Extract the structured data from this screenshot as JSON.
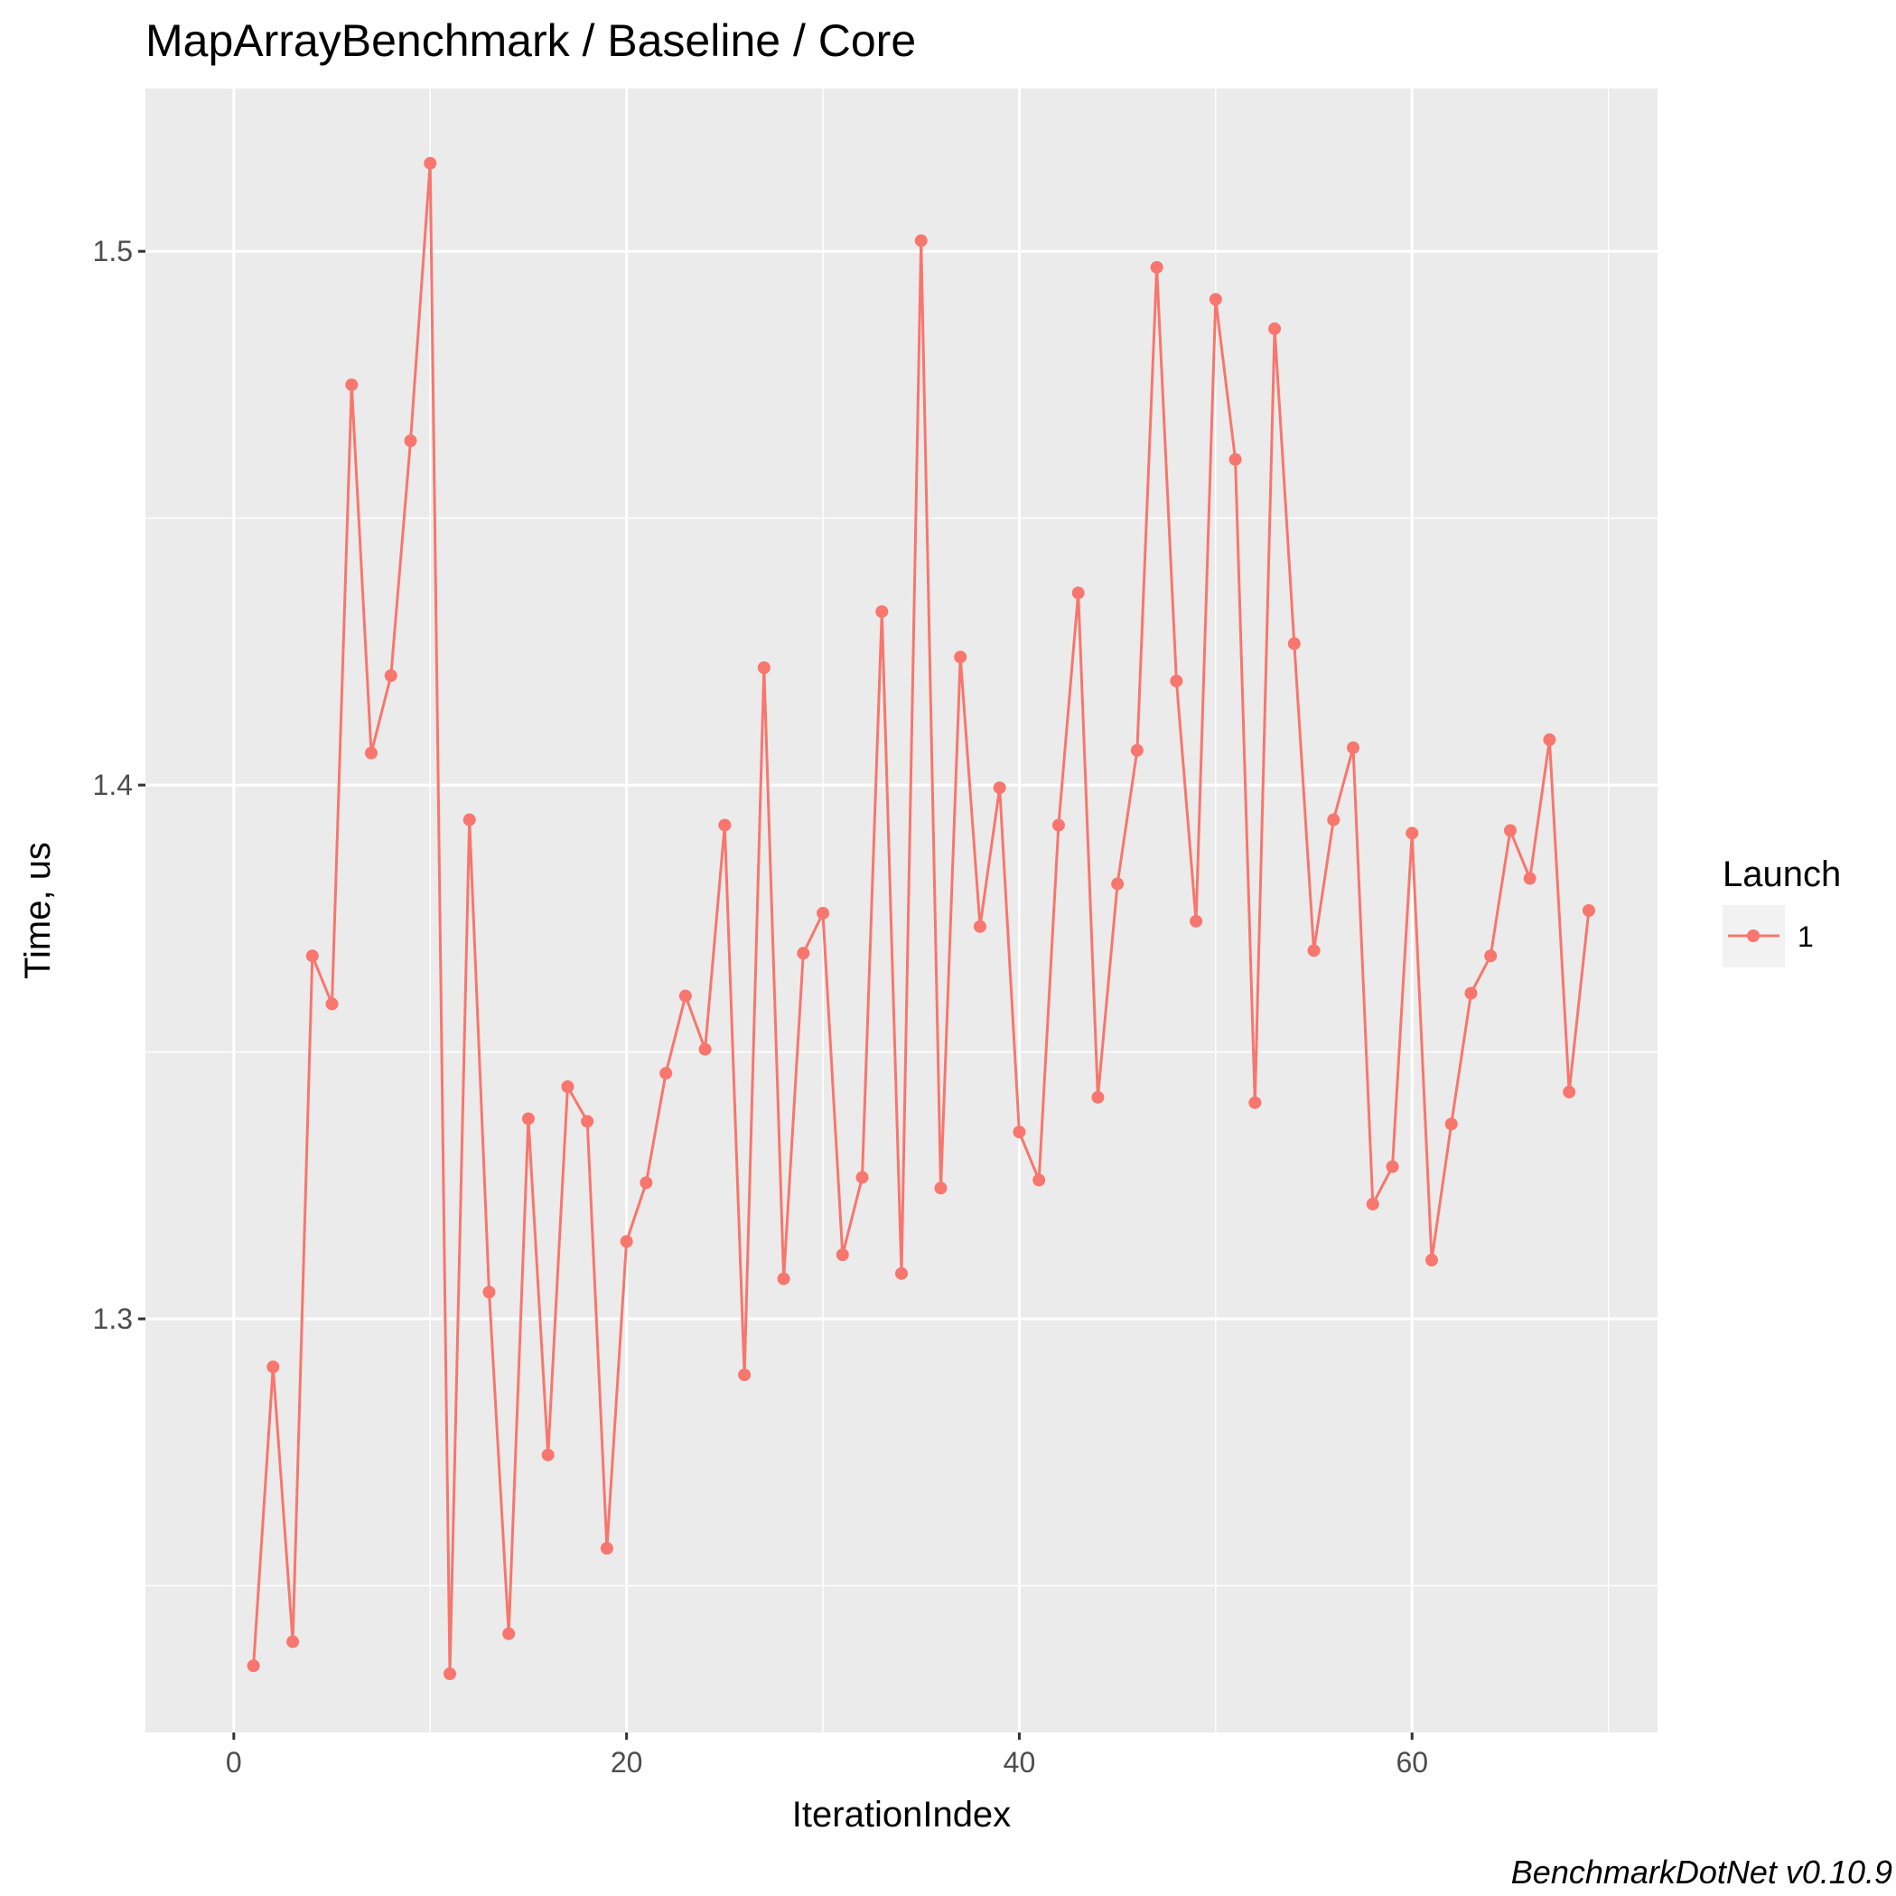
{
  "chart_data": {
    "type": "line",
    "title": "MapArrayBenchmark / Baseline / Core",
    "xlabel": "IterationIndex",
    "ylabel": "Time, us",
    "caption": "BenchmarkDotNet v0.10.9",
    "xlim": [
      -4.5,
      72.5
    ],
    "ylim": [
      1.2225,
      1.5305
    ],
    "x_ticks": [
      0,
      20,
      40,
      60
    ],
    "y_ticks": [
      1.3,
      1.4,
      1.5
    ],
    "grid": true,
    "legend": {
      "title": "Launch",
      "position": "right"
    },
    "series": [
      {
        "name": "1",
        "color": "#F8766D",
        "x": [
          1,
          2,
          3,
          4,
          5,
          6,
          7,
          8,
          9,
          10,
          11,
          12,
          13,
          14,
          15,
          16,
          17,
          18,
          19,
          20,
          21,
          22,
          23,
          24,
          25,
          26,
          27,
          28,
          29,
          30,
          31,
          32,
          33,
          34,
          35,
          36,
          37,
          38,
          39,
          40,
          41,
          42,
          43,
          44,
          45,
          46,
          47,
          48,
          49,
          50,
          51,
          52,
          53,
          54,
          55,
          56,
          57,
          58,
          59,
          60,
          61,
          62,
          63,
          64,
          65,
          66,
          67,
          68,
          69
        ],
        "y": [
          1.235,
          1.291,
          1.2395,
          1.368,
          1.359,
          1.475,
          1.406,
          1.4205,
          1.4645,
          1.5165,
          1.2335,
          1.3935,
          1.305,
          1.241,
          1.3375,
          1.2745,
          1.3435,
          1.337,
          1.257,
          1.3145,
          1.3255,
          1.346,
          1.3605,
          1.3505,
          1.3925,
          1.2895,
          1.422,
          1.3075,
          1.3685,
          1.376,
          1.312,
          1.3265,
          1.4325,
          1.3085,
          1.502,
          1.3245,
          1.424,
          1.3735,
          1.3995,
          1.335,
          1.326,
          1.3925,
          1.436,
          1.3415,
          1.3815,
          1.4065,
          1.497,
          1.4195,
          1.3745,
          1.491,
          1.461,
          1.3405,
          1.4855,
          1.4265,
          1.369,
          1.3935,
          1.407,
          1.3215,
          1.3285,
          1.391,
          1.311,
          1.3365,
          1.361,
          1.368,
          1.3915,
          1.3825,
          1.4085,
          1.3425,
          1.3765
        ]
      }
    ]
  }
}
